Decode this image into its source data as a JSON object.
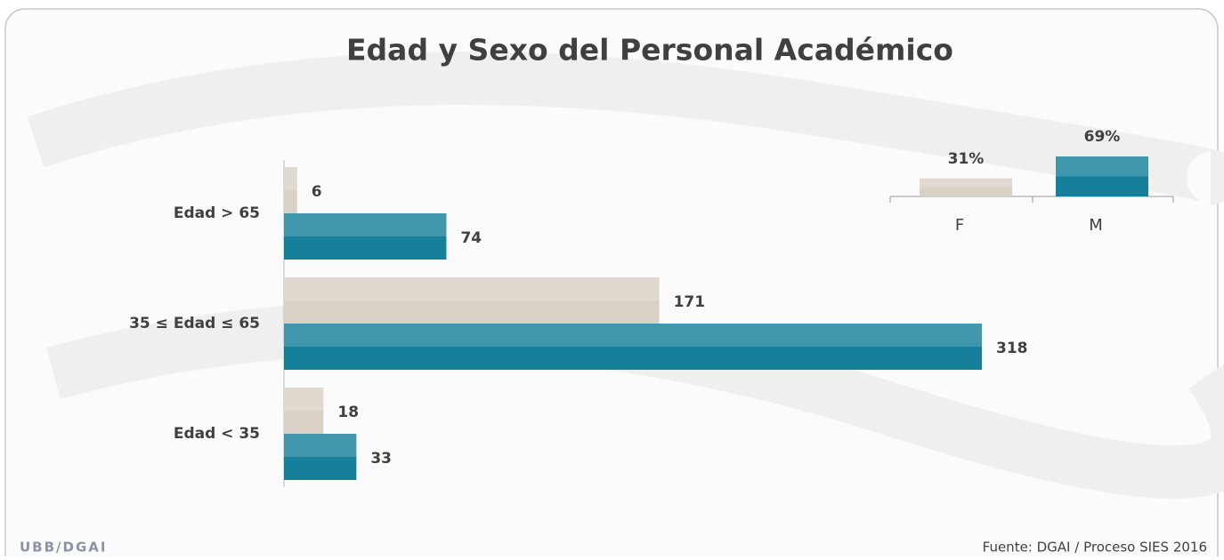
{
  "chart_data": [
    {
      "type": "hbar",
      "title": "Edad y Sexo del Personal Académico",
      "categories": [
        "Edad > 65",
        "35 ≤ Edad ≤ 65",
        "Edad < 35"
      ],
      "series": [
        {
          "color": "#d9d1c5",
          "values": [
            6,
            171,
            18
          ]
        },
        {
          "color": "#16809a",
          "values": [
            74,
            318,
            33
          ]
        }
      ]
    },
    {
      "type": "bar",
      "categories": [
        "F",
        "M"
      ],
      "values": [
        31,
        69
      ],
      "value_labels": [
        "31%",
        "69%"
      ],
      "colors": [
        "#d9d1c5",
        "#16809a"
      ]
    }
  ],
  "footer": {
    "left": "UBB/DGAI",
    "right": "Fuente: DGAI / Proceso SIES 2016"
  }
}
